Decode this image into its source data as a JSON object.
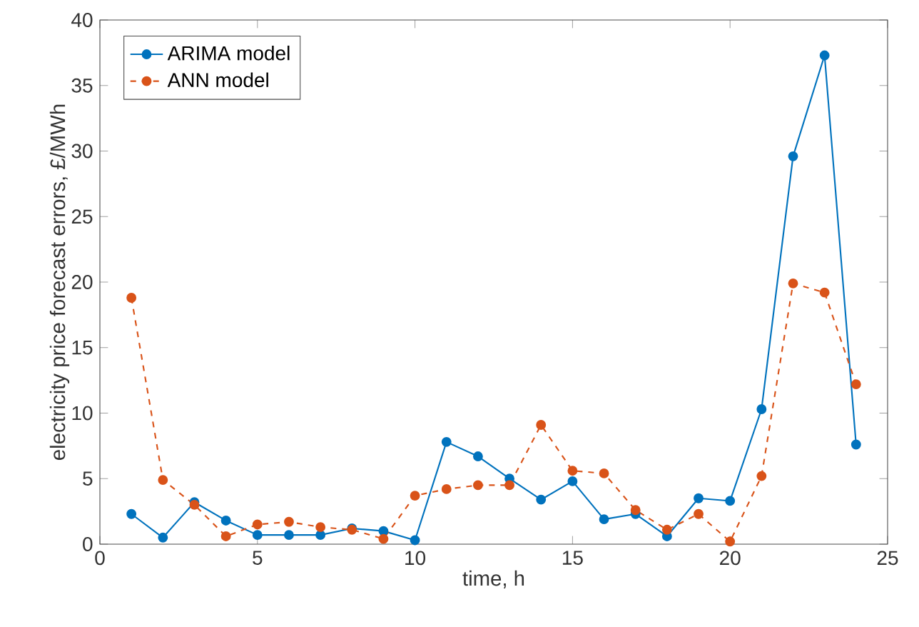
{
  "chart_data": {
    "type": "line",
    "xlabel": "time, h",
    "ylabel": "electricity price forecast errors, £/MWh",
    "x": [
      1,
      2,
      3,
      4,
      5,
      6,
      7,
      8,
      9,
      10,
      11,
      12,
      13,
      14,
      15,
      16,
      17,
      18,
      19,
      20,
      21,
      22,
      23,
      24
    ],
    "series": [
      {
        "name": "ARIMA model",
        "color": "#0072bd",
        "line_style": "solid",
        "values": [
          2.3,
          0.5,
          3.2,
          1.8,
          0.7,
          0.7,
          0.7,
          1.2,
          1.0,
          0.3,
          7.8,
          6.7,
          5.0,
          3.4,
          4.8,
          1.9,
          2.3,
          0.6,
          3.5,
          3.3,
          10.3,
          29.6,
          37.3,
          7.6
        ]
      },
      {
        "name": "ANN model",
        "color": "#d95319",
        "line_style": "dashed",
        "values": [
          18.8,
          4.9,
          3.0,
          0.6,
          1.5,
          1.7,
          1.3,
          1.1,
          0.4,
          3.7,
          4.2,
          4.5,
          4.5,
          9.1,
          5.6,
          5.4,
          2.6,
          1.1,
          2.3,
          0.2,
          5.2,
          19.9,
          19.2,
          12.2
        ]
      }
    ],
    "xlim": [
      0,
      25
    ],
    "ylim": [
      0,
      40
    ],
    "xticks": [
      0,
      5,
      10,
      15,
      20,
      25
    ],
    "yticks": [
      0,
      5,
      10,
      15,
      20,
      25,
      30,
      35,
      40
    ],
    "marker": "circle",
    "legend": "top left",
    "grid": false
  }
}
